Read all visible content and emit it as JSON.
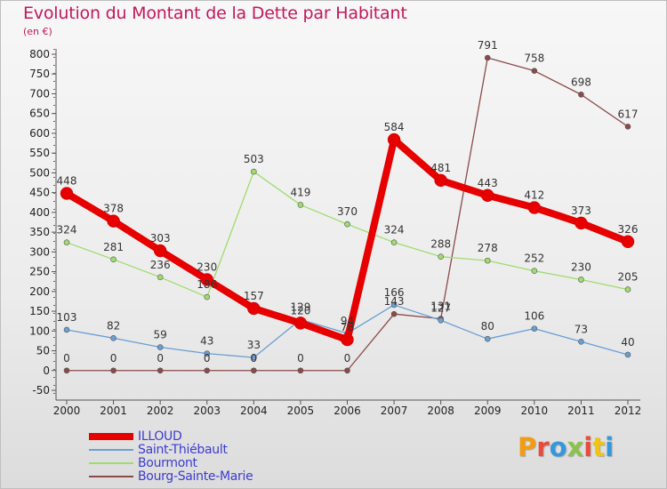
{
  "title": "Evolution du Montant de la Dette par Habitant",
  "unit": "(en €)",
  "logo": {
    "text": "Proxiti",
    "letter_colors": [
      "#f39c12",
      "#e74c3c",
      "#3498db",
      "#8bc34a",
      "#e74c3c",
      "#f1c40f",
      "#3498db"
    ]
  },
  "chart_data": {
    "type": "line",
    "x": [
      "2000",
      "2001",
      "2002",
      "2003",
      "2004",
      "2005",
      "2006",
      "2007",
      "2008",
      "2009",
      "2010",
      "2011",
      "2012"
    ],
    "ylim": [
      -50,
      800
    ],
    "yticks": [
      -50,
      0,
      50,
      100,
      150,
      200,
      250,
      300,
      350,
      400,
      450,
      500,
      550,
      600,
      650,
      700,
      750,
      800
    ],
    "grid": false,
    "legend_position": "bottom-left",
    "series": [
      {
        "name": "ILLOUD",
        "color": "#e60000",
        "width": 8,
        "marker": 7,
        "values": [
          448,
          378,
          303,
          230,
          157,
          120,
          78,
          584,
          481,
          443,
          412,
          373,
          326
        ]
      },
      {
        "name": "Saint-Thiébault",
        "color": "#6a9ed4",
        "width": 1.3,
        "marker": 3,
        "values": [
          103,
          82,
          59,
          43,
          33,
          129,
          94,
          166,
          127,
          80,
          106,
          73,
          40
        ]
      },
      {
        "name": "Bourmont",
        "color": "#9edc6e",
        "width": 1.3,
        "marker": 3,
        "values": [
          324,
          281,
          236,
          186,
          503,
          419,
          370,
          324,
          288,
          278,
          252,
          230,
          205
        ]
      },
      {
        "name": "Bourg-Sainte-Marie",
        "color": "#8b4a4a",
        "width": 1.3,
        "marker": 3,
        "values": [
          0,
          0,
          0,
          0,
          0,
          0,
          0,
          143,
          131,
          791,
          758,
          698,
          617
        ]
      }
    ]
  }
}
